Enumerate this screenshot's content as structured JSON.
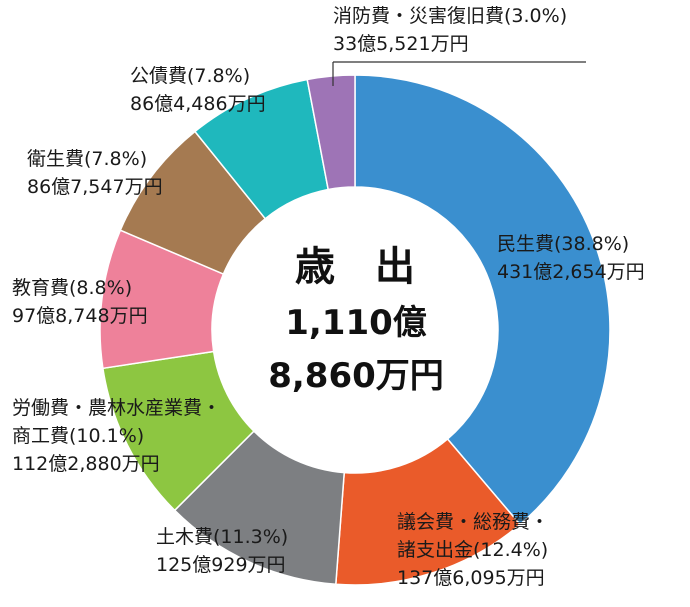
{
  "chart_data": {
    "type": "pie",
    "donut": true,
    "center": {
      "title": "歳　出",
      "line1": "1,110億",
      "line2": "8,860万円"
    },
    "slices": [
      {
        "name": "民生費",
        "percent_label": "(38.8%)",
        "amount": "431億2,654万円",
        "value": 38.8,
        "color": "#3a8fcf"
      },
      {
        "name": "議会費・総務費・",
        "name2": "諸支出金",
        "percent_label": "(12.4%)",
        "amount": "137億6,095万円",
        "value": 12.4,
        "color": "#ea5b2a"
      },
      {
        "name": "土木費",
        "percent_label": "(11.3%)",
        "amount": "125億929万円",
        "value": 11.3,
        "color": "#7d7f82"
      },
      {
        "name": "労働費・農林水産業費・",
        "name2": "商工費",
        "percent_label": "(10.1%)",
        "amount": "112億2,880万円",
        "value": 10.1,
        "color": "#8dc641"
      },
      {
        "name": "教育費",
        "percent_label": "(8.8%)",
        "amount": "97億8,748万円",
        "value": 8.8,
        "color": "#ee819a"
      },
      {
        "name": "衛生費",
        "percent_label": "(7.8%)",
        "amount": "86億7,547万円",
        "value": 7.8,
        "color": "#a57a51"
      },
      {
        "name": "公債費",
        "percent_label": "(7.8%)",
        "amount": "86億4,486万円",
        "value": 7.8,
        "color": "#1fb8bd"
      },
      {
        "name": "消防費・災害復旧費",
        "percent_label": "(3.0%)",
        "amount": "33億5,521万円",
        "value": 3.0,
        "color": "#9e74b6"
      }
    ]
  }
}
